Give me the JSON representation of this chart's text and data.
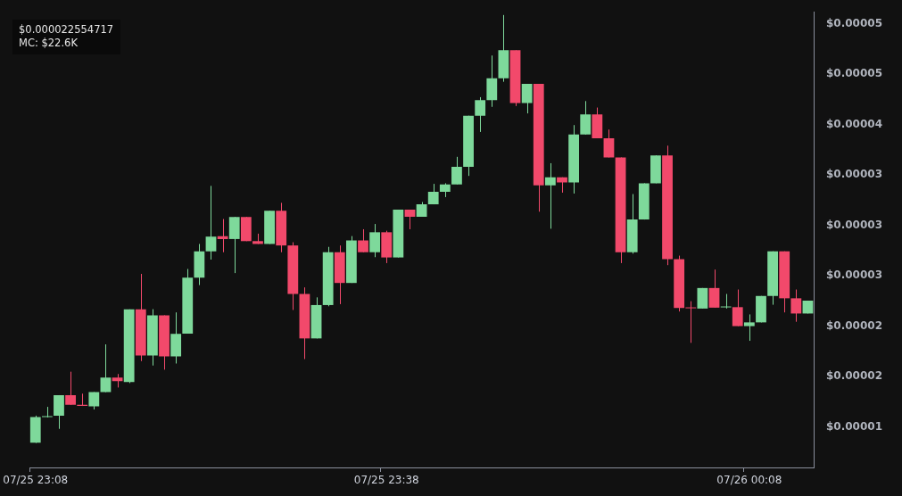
{
  "chart_data": {
    "type": "candlestick",
    "annotations": [
      "$0.000022554717",
      "MC: $22.6K"
    ],
    "categories": [
      "07/25 23:08",
      null,
      null,
      null,
      null,
      null,
      null,
      null,
      null,
      null,
      null,
      null,
      null,
      null,
      null,
      null,
      null,
      null,
      null,
      null,
      null,
      null,
      null,
      null,
      null,
      null,
      null,
      null,
      null,
      null,
      "07/25 23:38",
      null,
      null,
      null,
      null,
      null,
      null,
      null,
      null,
      null,
      null,
      null,
      null,
      null,
      null,
      null,
      null,
      null,
      null,
      null,
      null,
      null,
      null,
      null,
      null,
      null,
      null,
      null,
      null,
      null,
      null,
      "07/26 00:08",
      null,
      null,
      null,
      null,
      null
    ],
    "ohlc": [
      [
        8.45e-06,
        1.114e-05,
        8.43e-06,
        1.099e-05
      ],
      [
        1.1e-05,
        1.201e-05,
        1.096e-05,
        1.109e-05
      ],
      [
        1.114e-05,
        1.317e-05,
        9.83e-06,
        1.317e-05
      ],
      [
        1.317e-05,
        1.55e-05,
        1.221e-05,
        1.221e-05
      ],
      [
        1.221e-05,
        1.332e-05,
        1.21e-05,
        1.21e-05
      ],
      [
        1.207e-05,
        1.347e-05,
        1.175e-05,
        1.347e-05
      ],
      [
        1.347e-05,
        1.821e-05,
        1.347e-05,
        1.492e-05
      ],
      [
        1.492e-05,
        1.527e-05,
        1.393e-05,
        1.457e-05
      ],
      [
        1.448e-05,
        2.168e-05,
        1.437e-05,
        2.168e-05
      ],
      [
        2.168e-05,
        2.52e-05,
        1.655e-05,
        1.71e-05
      ],
      [
        1.71e-05,
        2.17e-05,
        1.611e-05,
        2.109e-05
      ],
      [
        2.109e-05,
        2.109e-05,
        1.57e-05,
        1.701e-05
      ],
      [
        1.701e-05,
        2.138e-05,
        1.631e-05,
        1.926e-05
      ],
      [
        1.928e-05,
        2.569e-05,
        1.928e-05,
        2.482e-05
      ],
      [
        2.482e-05,
        2.817e-05,
        2.409e-05,
        2.744e-05
      ],
      [
        2.744e-05,
        3.393e-05,
        2.662e-05,
        2.889e-05
      ],
      [
        2.895e-05,
        3.064e-05,
        2.735e-05,
        2.866e-05
      ],
      [
        2.866e-05,
        3.085e-05,
        2.528e-05,
        3.085e-05
      ],
      [
        3.085e-05,
        3.085e-05,
        2.845e-05,
        2.845e-05
      ],
      [
        2.845e-05,
        2.919e-05,
        2.817e-05,
        2.817e-05
      ],
      [
        2.817e-05,
        3.146e-05,
        2.817e-05,
        3.146e-05
      ],
      [
        3.146e-05,
        3.225e-05,
        2.735e-05,
        2.802e-05
      ],
      [
        2.802e-05,
        2.834e-05,
        2.162e-05,
        2.321e-05
      ],
      [
        2.321e-05,
        2.386e-05,
        1.675e-05,
        1.88e-05
      ],
      [
        1.88e-05,
        2.287e-05,
        1.88e-05,
        2.211e-05
      ],
      [
        2.211e-05,
        2.788e-05,
        2.199e-05,
        2.735e-05
      ],
      [
        2.735e-05,
        2.802e-05,
        2.22e-05,
        2.43e-05
      ],
      [
        2.43e-05,
        2.895e-05,
        2.43e-05,
        2.852e-05
      ],
      [
        2.852e-05,
        2.963e-05,
        2.735e-05,
        2.735e-05
      ],
      [
        2.735e-05,
        3.015e-05,
        2.686e-05,
        2.933e-05
      ],
      [
        2.933e-05,
        2.948e-05,
        2.627e-05,
        2.683e-05
      ],
      [
        2.683e-05,
        3.157e-05,
        2.683e-05,
        3.157e-05
      ],
      [
        3.157e-05,
        3.157e-05,
        2.963e-05,
        3.087e-05
      ],
      [
        3.087e-05,
        3.233e-05,
        3.087e-05,
        3.21e-05
      ],
      [
        3.21e-05,
        3.413e-05,
        3.21e-05,
        3.335e-05
      ],
      [
        3.335e-05,
        3.419e-05,
        3.282e-05,
        3.408e-05
      ],
      [
        3.408e-05,
        3.681e-05,
        3.408e-05,
        3.583e-05
      ],
      [
        3.583e-05,
        4.089e-05,
        3.492e-05,
        4.089e-05
      ],
      [
        4.089e-05,
        4.273e-05,
        3.928e-05,
        4.243e-05
      ],
      [
        4.243e-05,
        4.686e-05,
        4.177e-05,
        4.461e-05
      ],
      [
        4.461e-05,
        5.088e-05,
        4.426e-05,
        4.738e-05
      ],
      [
        4.738e-05,
        4.738e-05,
        4.185e-05,
        4.214e-05
      ],
      [
        4.214e-05,
        4.404e-05,
        4.112e-05,
        4.404e-05
      ],
      [
        4.404e-05,
        4.404e-05,
        3.137e-05,
        3.399e-05
      ],
      [
        3.399e-05,
        3.618e-05,
        2.968e-05,
        3.478e-05
      ],
      [
        3.478e-05,
        3.478e-05,
        3.326e-05,
        3.428e-05
      ],
      [
        3.428e-05,
        3.996e-05,
        3.317e-05,
        3.902e-05
      ],
      [
        3.902e-05,
        4.234e-05,
        3.902e-05,
        4.103e-05
      ],
      [
        4.103e-05,
        4.17e-05,
        3.865e-05,
        3.865e-05
      ],
      [
        3.865e-05,
        3.952e-05,
        3.675e-05,
        3.675e-05
      ],
      [
        3.675e-05,
        3.675e-05,
        2.627e-05,
        2.735e-05
      ],
      [
        2.735e-05,
        3.312e-05,
        2.721e-05,
        3.059e-05
      ],
      [
        3.059e-05,
        3.419e-05,
        3.059e-05,
        3.419e-05
      ],
      [
        3.419e-05,
        3.696e-05,
        3.419e-05,
        3.696e-05
      ],
      [
        3.696e-05,
        3.792e-05,
        2.607e-05,
        2.666e-05
      ],
      [
        2.666e-05,
        2.701e-05,
        2.147e-05,
        2.182e-05
      ],
      [
        2.183e-05,
        2.249e-05,
        1.836e-05,
        2.179e-05
      ],
      [
        2.176e-05,
        2.38e-05,
        2.176e-05,
        2.38e-05
      ],
      [
        2.38e-05,
        2.563e-05,
        2.185e-05,
        2.185e-05
      ],
      [
        2.188e-05,
        2.321e-05,
        2.176e-05,
        2.192e-05
      ],
      [
        2.19e-05,
        2.365e-05,
        2.002e-05,
        2.002e-05
      ],
      [
        2.002e-05,
        2.118e-05,
        1.856e-05,
        2.039e-05
      ],
      [
        2.039e-05,
        2.301e-05,
        2.039e-05,
        2.301e-05
      ],
      [
        2.301e-05,
        2.744e-05,
        2.214e-05,
        2.744e-05
      ],
      [
        2.744e-05,
        2.744e-05,
        2.138e-05,
        2.278e-05
      ],
      [
        2.278e-05,
        2.365e-05,
        2.045e-05,
        2.127e-05
      ],
      [
        2.127e-05,
        2.255e-05,
        2.127e-05,
        2.255e-05
      ]
    ],
    "colors": [
      "#7ed99b",
      "#7ed99b",
      "#7ed99b",
      "#f2496b",
      "#f2496b",
      "#7ed99b",
      "#7ed99b",
      "#f2496b",
      "#7ed99b",
      "#f2496b",
      "#7ed99b",
      "#f2496b",
      "#7ed99b",
      "#7ed99b",
      "#7ed99b",
      "#7ed99b",
      "#f2496b",
      "#7ed99b",
      "#f2496b",
      "#f2496b",
      "#7ed99b",
      "#f2496b",
      "#f2496b",
      "#f2496b",
      "#7ed99b",
      "#7ed99b",
      "#f2496b",
      "#7ed99b",
      "#f2496b",
      "#7ed99b",
      "#f2496b",
      "#7ed99b",
      "#f2496b",
      "#7ed99b",
      "#7ed99b",
      "#7ed99b",
      "#7ed99b",
      "#7ed99b",
      "#7ed99b",
      "#7ed99b",
      "#7ed99b",
      "#f2496b",
      "#7ed99b",
      "#f2496b",
      "#7ed99b",
      "#f2496b",
      "#7ed99b",
      "#7ed99b",
      "#f2496b",
      "#f2496b",
      "#f2496b",
      "#7ed99b",
      "#7ed99b",
      "#7ed99b",
      "#f2496b",
      "#f2496b",
      "#f2496b",
      "#7ed99b",
      "#f2496b",
      "#7ed99b",
      "#f2496b",
      "#7ed99b",
      "#7ed99b",
      "#7ed99b",
      "#f2496b",
      "#f2496b",
      "#7ed99b"
    ],
    "ylim": [
      6e-06,
      5.12e-05
    ],
    "yticks": [
      {
        "value": 1e-05,
        "label": "$0.00001"
      },
      {
        "value": 1.5e-05,
        "label": "$0.00002"
      },
      {
        "value": 2e-05,
        "label": "$0.00002"
      },
      {
        "value": 2.5e-05,
        "label": "$0.00003"
      },
      {
        "value": 3e-05,
        "label": "$0.00003"
      },
      {
        "value": 3.5e-05,
        "label": "$0.00003"
      },
      {
        "value": 4e-05,
        "label": "$0.00004"
      },
      {
        "value": 4.5e-05,
        "label": "$0.00005"
      },
      {
        "value": 5e-05,
        "label": "$0.00005"
      }
    ],
    "grid": false,
    "legend": false
  }
}
